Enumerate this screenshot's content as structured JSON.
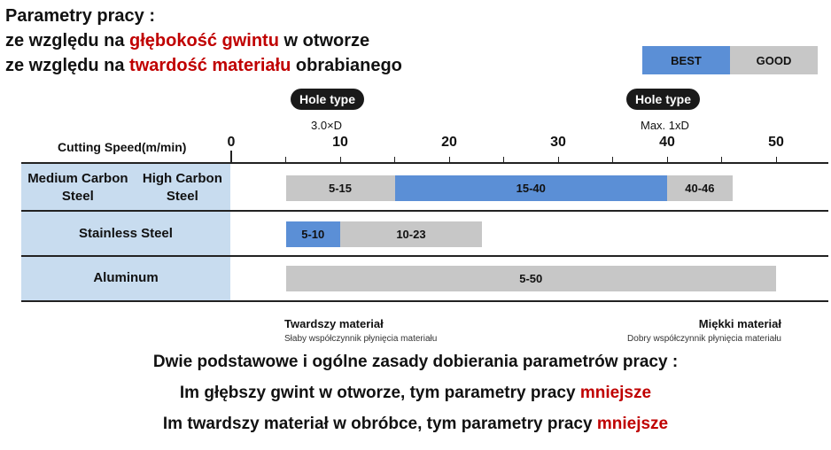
{
  "header": {
    "line1": "Parametry pracy :",
    "line2_pre": "ze względu na ",
    "line2_em": "głębokość gwintu",
    "line2_post": " w otworze",
    "line3_pre": "ze względu na ",
    "line3_em": "twardość materiału",
    "line3_post": " obrabianego"
  },
  "legend": {
    "best": "BEST",
    "good": "GOOD",
    "best_color": "#5b8fd6",
    "good_color": "#c7c7c7"
  },
  "hole_types": [
    {
      "label": "Hole type",
      "sub": "3.0×D"
    },
    {
      "label": "Hole type",
      "sub": "Max. 1xD"
    }
  ],
  "notes": {
    "left_title": "Twardszy materiał",
    "left_sub": "Słaby współczynnik płynięcia materiału",
    "right_title": "Miękki materiał",
    "right_sub": "Dobry współczynnik płynięcia materiału"
  },
  "rules": {
    "line1": "Dwie podstawowe i ogólne zasady dobierania parametrów pracy :",
    "line2_pre": "Im głębszy gwint w otworze, tym parametry pracy ",
    "line2_em": "mniejsze",
    "line3_pre": "Im twardszy materiał w obróbce, tym parametry pracy ",
    "line3_em": "mniejsze"
  },
  "chart_data": {
    "type": "bar",
    "orientation": "horizontal-range",
    "xlabel": "Cutting Speed(m/min)",
    "xlim": [
      0,
      50
    ],
    "xticks": [
      0,
      10,
      20,
      30,
      40,
      50
    ],
    "categories": [
      "Medium Carbon Steel\nHigh Carbon Steel",
      "Stainless Steel",
      "Aluminum"
    ],
    "category_lines": [
      [
        "Medium Carbon Steel",
        "High Carbon Steel"
      ],
      [
        "Stainless Steel"
      ],
      [
        "Aluminum"
      ]
    ],
    "ranges": [
      [
        {
          "start": 5,
          "end": 15,
          "label": "5-15",
          "rating": "good"
        },
        {
          "start": 15,
          "end": 40,
          "label": "15-40",
          "rating": "best"
        },
        {
          "start": 40,
          "end": 46,
          "label": "40-46",
          "rating": "good"
        }
      ],
      [
        {
          "start": 5,
          "end": 10,
          "label": "5-10",
          "rating": "best"
        },
        {
          "start": 10,
          "end": 23,
          "label": "10-23",
          "rating": "good"
        }
      ],
      [
        {
          "start": 5,
          "end": 50,
          "label": "5-50",
          "rating": "good"
        }
      ]
    ]
  }
}
